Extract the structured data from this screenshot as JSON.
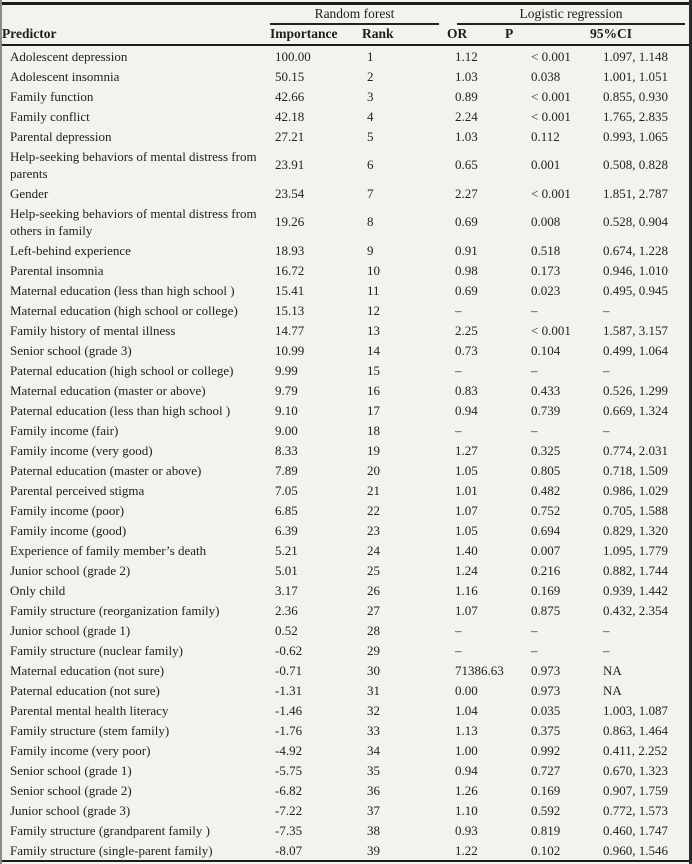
{
  "table": {
    "title_hint": "Predictor importance (random forest) and logistic regression results",
    "empty_marker": "–",
    "groups": [
      {
        "label": "Random forest"
      },
      {
        "label": "Logistic regression"
      }
    ],
    "columns": [
      {
        "key": "predictor",
        "label": "Predictor"
      },
      {
        "key": "importance",
        "label": "Importance"
      },
      {
        "key": "rank",
        "label": "Rank"
      },
      {
        "key": "or",
        "label": "OR"
      },
      {
        "key": "p",
        "label": "P"
      },
      {
        "key": "ci",
        "label": "95%CI"
      }
    ],
    "rows": [
      {
        "predictor": "Adolescent depression",
        "importance": "100.00",
        "rank": "1",
        "or": "1.12",
        "p": "< 0.001",
        "ci": "1.097, 1.148"
      },
      {
        "predictor": "Adolescent insomnia",
        "importance": "50.15",
        "rank": "2",
        "or": "1.03",
        "p": "0.038",
        "ci": "1.001, 1.051"
      },
      {
        "predictor": "Family function",
        "importance": "42.66",
        "rank": "3",
        "or": "0.89",
        "p": "< 0.001",
        "ci": "0.855, 0.930"
      },
      {
        "predictor": "Family conflict",
        "importance": "42.18",
        "rank": "4",
        "or": "2.24",
        "p": "< 0.001",
        "ci": "1.765, 2.835"
      },
      {
        "predictor": "Parental depression",
        "importance": "27.21",
        "rank": "5",
        "or": "1.03",
        "p": "0.112",
        "ci": "0.993, 1.065"
      },
      {
        "predictor": "Help-seeking behaviors of mental distress from parents",
        "importance": "23.91",
        "rank": "6",
        "or": "0.65",
        "p": "0.001",
        "ci": "0.508, 0.828"
      },
      {
        "predictor": "Gender",
        "importance": "23.54",
        "rank": "7",
        "or": "2.27",
        "p": "< 0.001",
        "ci": "1.851, 2.787"
      },
      {
        "predictor": "Help-seeking behaviors of mental distress from others in family",
        "importance": "19.26",
        "rank": "8",
        "or": "0.69",
        "p": "0.008",
        "ci": "0.528, 0.904"
      },
      {
        "predictor": "Left-behind experience",
        "importance": "18.93",
        "rank": "9",
        "or": "0.91",
        "p": "0.518",
        "ci": "0.674, 1.228"
      },
      {
        "predictor": "Parental insomnia",
        "importance": "16.72",
        "rank": "10",
        "or": "0.98",
        "p": "0.173",
        "ci": "0.946, 1.010"
      },
      {
        "predictor": "Maternal education (less than high school )",
        "importance": "15.41",
        "rank": "11",
        "or": "0.69",
        "p": "0.023",
        "ci": "0.495, 0.945"
      },
      {
        "predictor": "Maternal education (high school or college)",
        "importance": "15.13",
        "rank": "12",
        "or": "–",
        "p": "–",
        "ci": "–"
      },
      {
        "predictor": "Family history of mental illness",
        "importance": "14.77",
        "rank": "13",
        "or": "2.25",
        "p": "< 0.001",
        "ci": "1.587, 3.157"
      },
      {
        "predictor": "Senior school (grade 3)",
        "importance": "10.99",
        "rank": "14",
        "or": "0.73",
        "p": "0.104",
        "ci": "0.499, 1.064"
      },
      {
        "predictor": "Paternal education (high school or college)",
        "importance": "9.99",
        "rank": "15",
        "or": "–",
        "p": "–",
        "ci": "–"
      },
      {
        "predictor": "Maternal education (master or above)",
        "importance": "9.79",
        "rank": "16",
        "or": "0.83",
        "p": "0.433",
        "ci": "0.526, 1.299"
      },
      {
        "predictor": "Paternal education (less than high school )",
        "importance": "9.10",
        "rank": "17",
        "or": "0.94",
        "p": "0.739",
        "ci": "0.669, 1.324"
      },
      {
        "predictor": "Family income (fair)",
        "importance": "9.00",
        "rank": "18",
        "or": "–",
        "p": "–",
        "ci": "–"
      },
      {
        "predictor": "Family income (very good)",
        "importance": "8.33",
        "rank": "19",
        "or": "1.27",
        "p": "0.325",
        "ci": "0.774, 2.031"
      },
      {
        "predictor": "Paternal education (master or above)",
        "importance": "7.89",
        "rank": "20",
        "or": "1.05",
        "p": "0.805",
        "ci": "0.718, 1.509"
      },
      {
        "predictor": "Parental perceived stigma",
        "importance": "7.05",
        "rank": "21",
        "or": "1.01",
        "p": "0.482",
        "ci": "0.986, 1.029"
      },
      {
        "predictor": "Family income (poor)",
        "importance": "6.85",
        "rank": "22",
        "or": "1.07",
        "p": "0.752",
        "ci": "0.705, 1.588"
      },
      {
        "predictor": "Family income (good)",
        "importance": "6.39",
        "rank": "23",
        "or": "1.05",
        "p": "0.694",
        "ci": "0.829, 1.320"
      },
      {
        "predictor": "Experience of family member’s death",
        "importance": "5.21",
        "rank": "24",
        "or": "1.40",
        "p": "0.007",
        "ci": "1.095, 1.779"
      },
      {
        "predictor": "Junior school (grade 2)",
        "importance": "5.01",
        "rank": "25",
        "or": "1.24",
        "p": "0.216",
        "ci": "0.882, 1.744"
      },
      {
        "predictor": "Only child",
        "importance": "3.17",
        "rank": "26",
        "or": "1.16",
        "p": "0.169",
        "ci": "0.939, 1.442"
      },
      {
        "predictor": "Family structure (reorganization family)",
        "importance": "2.36",
        "rank": "27",
        "or": "1.07",
        "p": "0.875",
        "ci": "0.432, 2.354"
      },
      {
        "predictor": "Junior school (grade 1)",
        "importance": "0.52",
        "rank": "28",
        "or": "–",
        "p": "–",
        "ci": "–"
      },
      {
        "predictor": "Family structure (nuclear family)",
        "importance": "-0.62",
        "rank": "29",
        "or": "–",
        "p": "–",
        "ci": "–"
      },
      {
        "predictor": "Maternal education (not sure)",
        "importance": "-0.71",
        "rank": "30",
        "or": "71386.63",
        "p": "0.973",
        "ci": "NA"
      },
      {
        "predictor": "Paternal education (not sure)",
        "importance": "-1.31",
        "rank": "31",
        "or": "0.00",
        "p": "0.973",
        "ci": "NA"
      },
      {
        "predictor": "Parental mental health literacy",
        "importance": "-1.46",
        "rank": "32",
        "or": "1.04",
        "p": "0.035",
        "ci": "1.003, 1.087"
      },
      {
        "predictor": "Family structure (stem family)",
        "importance": "-1.76",
        "rank": "33",
        "or": "1.13",
        "p": "0.375",
        "ci": "0.863, 1.464"
      },
      {
        "predictor": "Family income (very poor)",
        "importance": "-4.92",
        "rank": "34",
        "or": "1.00",
        "p": "0.992",
        "ci": "0.411, 2.252"
      },
      {
        "predictor": "Senior school (grade 1)",
        "importance": "-5.75",
        "rank": "35",
        "or": "0.94",
        "p": "0.727",
        "ci": "0.670, 1.323"
      },
      {
        "predictor": "Senior school (grade 2)",
        "importance": "-6.82",
        "rank": "36",
        "or": "1.26",
        "p": "0.169",
        "ci": "0.907, 1.759"
      },
      {
        "predictor": "Junior school (grade 3)",
        "importance": "-7.22",
        "rank": "37",
        "or": "1.10",
        "p": "0.592",
        "ci": "0.772, 1.573"
      },
      {
        "predictor": "Family structure (grandparent family )",
        "importance": "-7.35",
        "rank": "38",
        "or": "0.93",
        "p": "0.819",
        "ci": "0.460, 1.747"
      },
      {
        "predictor": "Family structure (single-parent family)",
        "importance": "-8.07",
        "rank": "39",
        "or": "1.22",
        "p": "0.102",
        "ci": "0.960, 1.546"
      }
    ]
  }
}
